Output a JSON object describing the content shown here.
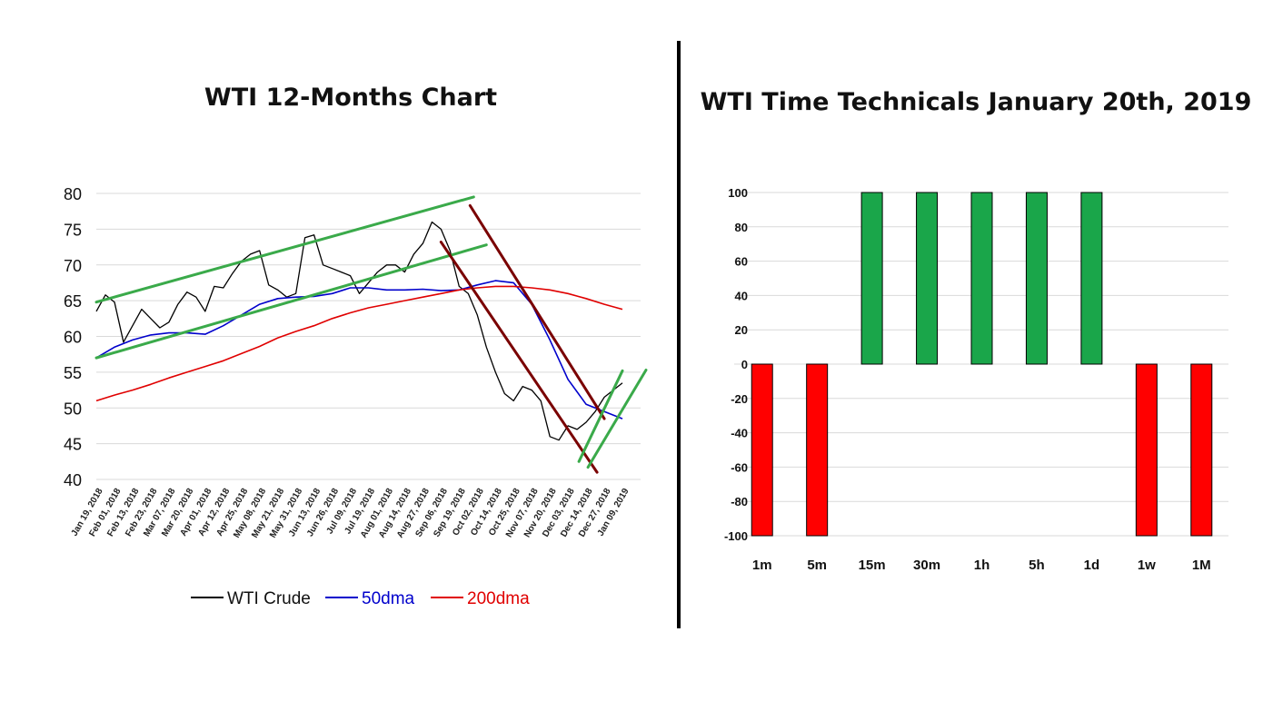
{
  "chart_data": [
    {
      "type": "line",
      "title": "WTI 12-Months Chart",
      "xlabel": "",
      "ylabel": "",
      "ylim": [
        40,
        80
      ],
      "yticks": [
        40,
        45,
        50,
        55,
        60,
        65,
        70,
        75,
        80
      ],
      "grid": true,
      "legend_position": "bottom",
      "x_tick_labels": [
        "Jan 19, 2018",
        "Feb 01, 2018",
        "Feb 13, 2018",
        "Feb 23, 2018",
        "Mar 07, 2018",
        "Mar 20, 2018",
        "Apr 01, 2018",
        "Apr 12, 2018",
        "Apr 25, 2018",
        "May 08, 2018",
        "May 21, 2018",
        "May 31, 2018",
        "Jun 13, 2018",
        "Jun 26, 2018",
        "Jul 09, 2018",
        "Jul 19, 2018",
        "Aug 01, 2018",
        "Aug 14, 2018",
        "Aug 27, 2018",
        "Sep 06, 2018",
        "Sep 19, 2018",
        "Oct 02, 2018",
        "Oct 14, 2018",
        "Oct 25, 2018",
        "Nov 07, 2018",
        "Nov 20, 2018",
        "Dec 03, 2018",
        "Dec 14, 2018",
        "Dec 27, 2018",
        "Jan 09, 2019"
      ],
      "series": [
        {
          "name": "WTI Crude",
          "color": "#000000",
          "x": [
            0,
            0.5,
            1,
            1.5,
            2,
            2.5,
            3,
            3.5,
            4,
            4.5,
            5,
            5.5,
            6,
            6.5,
            7,
            7.5,
            8,
            8.5,
            9,
            9.5,
            10,
            10.5,
            11,
            11.5,
            12,
            12.5,
            13,
            13.5,
            14,
            14.5,
            15,
            15.5,
            16,
            16.5,
            17,
            17.5,
            18,
            18.5,
            19,
            19.5,
            20,
            20.5,
            21,
            21.5,
            22,
            22.5,
            23,
            23.5,
            24,
            24.5,
            25,
            25.5,
            26,
            26.5,
            27,
            27.5,
            28,
            28.5,
            29
          ],
          "values": [
            63.5,
            65.8,
            64.8,
            59.2,
            61.5,
            63.8,
            62.5,
            61.2,
            62.0,
            64.5,
            66.2,
            65.5,
            63.5,
            67.0,
            66.8,
            68.8,
            70.5,
            71.5,
            72.0,
            67.2,
            66.5,
            65.5,
            66.0,
            73.8,
            74.2,
            70.0,
            69.5,
            69.0,
            68.5,
            66.0,
            67.5,
            69.0,
            70.0,
            70.0,
            69.0,
            71.5,
            73.0,
            76.0,
            75.0,
            72.0,
            67.0,
            66.0,
            63.0,
            58.5,
            55.0,
            52.0,
            51.0,
            53.0,
            52.5,
            51.0,
            46.0,
            45.5,
            47.5,
            47.0,
            48.0,
            49.5,
            51.5,
            52.5,
            53.5
          ]
        },
        {
          "name": "50dma",
          "color": "#0000cc",
          "x": [
            0,
            1,
            2,
            3,
            4,
            5,
            6,
            7,
            8,
            9,
            10,
            11,
            12,
            13,
            14,
            15,
            16,
            17,
            18,
            19,
            20,
            21,
            22,
            23,
            24,
            25,
            26,
            27,
            28,
            29
          ],
          "values": [
            57.0,
            58.5,
            59.5,
            60.2,
            60.5,
            60.5,
            60.3,
            61.5,
            63.0,
            64.5,
            65.3,
            65.5,
            65.6,
            66.0,
            66.8,
            66.8,
            66.5,
            66.5,
            66.6,
            66.4,
            66.5,
            67.2,
            67.8,
            67.5,
            64.5,
            59.5,
            54.0,
            50.5,
            49.5,
            48.5
          ]
        },
        {
          "name": "200dma",
          "color": "#e00000",
          "x": [
            0,
            1,
            2,
            3,
            4,
            5,
            6,
            7,
            8,
            9,
            10,
            11,
            12,
            13,
            14,
            15,
            16,
            17,
            18,
            19,
            20,
            21,
            22,
            23,
            24,
            25,
            26,
            27,
            28,
            29
          ],
          "values": [
            51.0,
            51.8,
            52.5,
            53.3,
            54.2,
            55.0,
            55.8,
            56.6,
            57.6,
            58.6,
            59.8,
            60.7,
            61.5,
            62.5,
            63.3,
            64.0,
            64.5,
            65.0,
            65.5,
            66.0,
            66.5,
            66.8,
            67.0,
            67.0,
            66.8,
            66.5,
            66.0,
            65.3,
            64.5,
            63.8
          ]
        }
      ],
      "trendlines": [
        {
          "color": "#3aaa4a",
          "from": [
            0,
            64.8
          ],
          "to": [
            20.8,
            79.5
          ]
        },
        {
          "color": "#3aaa4a",
          "from": [
            0,
            57.0
          ],
          "to": [
            21.5,
            72.8
          ]
        },
        {
          "color": "#7a0000",
          "from": [
            20.6,
            78.3
          ],
          "to": [
            28.0,
            48.5
          ]
        },
        {
          "color": "#7a0000",
          "from": [
            19.0,
            73.2
          ],
          "to": [
            27.6,
            41.0
          ]
        },
        {
          "color": "#3aaa4a",
          "from": [
            26.6,
            42.5
          ],
          "to": [
            29.0,
            55.2
          ]
        },
        {
          "color": "#3aaa4a",
          "from": [
            27.1,
            41.7
          ],
          "to": [
            30.3,
            55.3
          ]
        }
      ]
    },
    {
      "type": "bar",
      "title": "WTI Time Technicals January 20th, 2019",
      "xlabel": "",
      "ylabel": "",
      "ylim": [
        -100,
        100
      ],
      "yticks": [
        -100,
        -80,
        -60,
        -40,
        -20,
        0,
        20,
        40,
        60,
        80,
        100
      ],
      "grid": true,
      "categories": [
        "1m",
        "5m",
        "15m",
        "30m",
        "1h",
        "5h",
        "1d",
        "1w",
        "1M"
      ],
      "values": [
        -100,
        -100,
        100,
        100,
        100,
        100,
        100,
        -100,
        -100
      ],
      "positive_color": "#1aa64a",
      "negative_color": "#ff0000"
    }
  ]
}
